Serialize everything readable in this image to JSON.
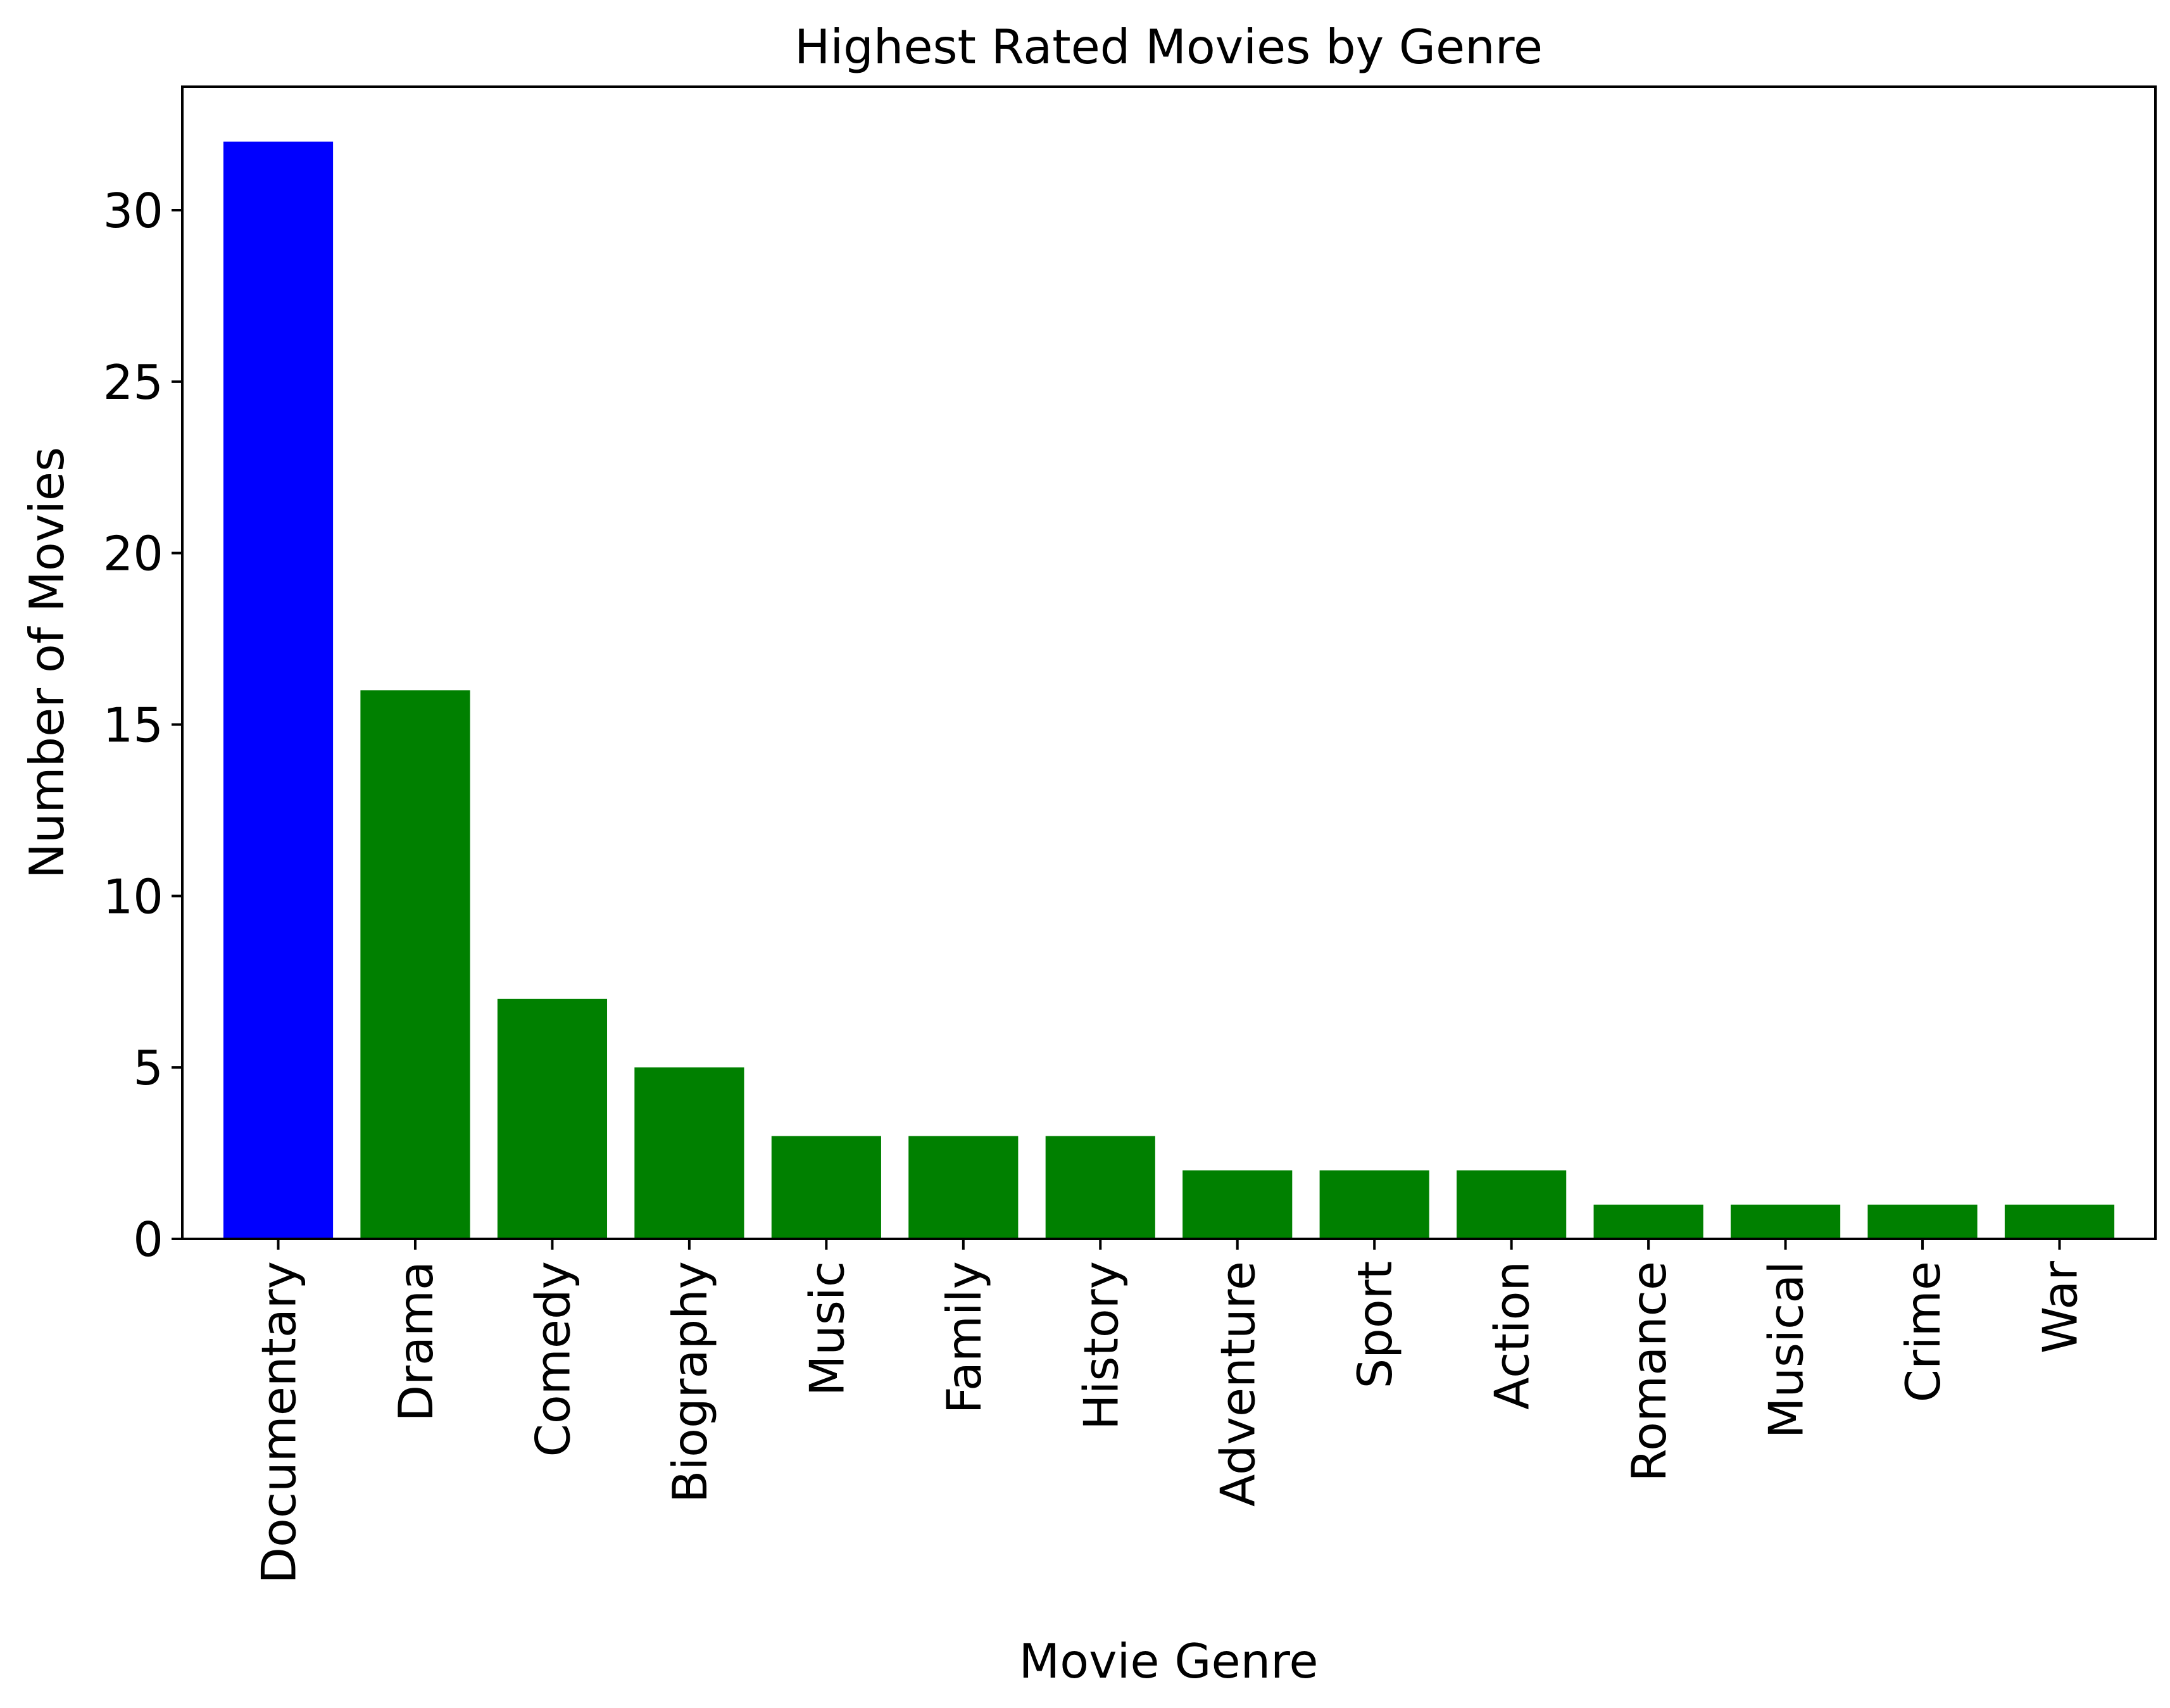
{
  "chart_data": {
    "type": "bar",
    "title": "Highest Rated Movies by Genre",
    "xlabel": "Movie Genre",
    "ylabel": "Number of Movies",
    "categories": [
      "Documentary",
      "Drama",
      "Comedy",
      "Biography",
      "Music",
      "Family",
      "History",
      "Adventure",
      "Sport",
      "Action",
      "Romance",
      "Musical",
      "Crime",
      "War"
    ],
    "values": [
      32,
      16,
      7,
      5,
      3,
      3,
      3,
      2,
      2,
      2,
      1,
      1,
      1,
      1
    ],
    "bar_colors": [
      "#0000ff",
      "#008000",
      "#008000",
      "#008000",
      "#008000",
      "#008000",
      "#008000",
      "#008000",
      "#008000",
      "#008000",
      "#008000",
      "#008000",
      "#008000",
      "#008000"
    ],
    "ylim": [
      0,
      33.6
    ],
    "yticks": [
      0,
      5,
      10,
      15,
      20,
      25,
      30
    ],
    "grid": false,
    "legend": "none"
  }
}
